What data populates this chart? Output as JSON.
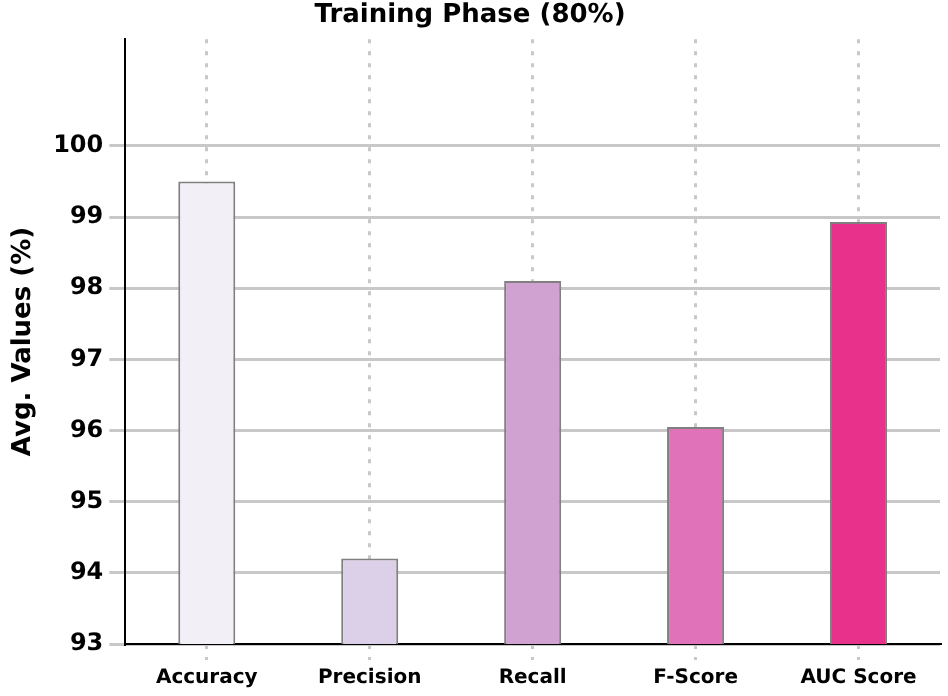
{
  "chart_data": {
    "type": "bar",
    "title": "Training Phase (80%)",
    "ylabel": "Avg. Values (%)",
    "categories": [
      "Accuracy",
      "Precision",
      "Recall",
      "F-Score",
      "AUC Score"
    ],
    "values": [
      99.5,
      94.2,
      98.1,
      96.05,
      98.93
    ],
    "colors": [
      "#f2eff7",
      "#dcd0e8",
      "#cfa2d2",
      "#df72b8",
      "#e8318a"
    ],
    "ylim": [
      93,
      101.5
    ],
    "yticks": [
      93,
      94,
      95,
      96,
      97,
      98,
      99,
      100
    ],
    "grid": true,
    "legend": false
  }
}
